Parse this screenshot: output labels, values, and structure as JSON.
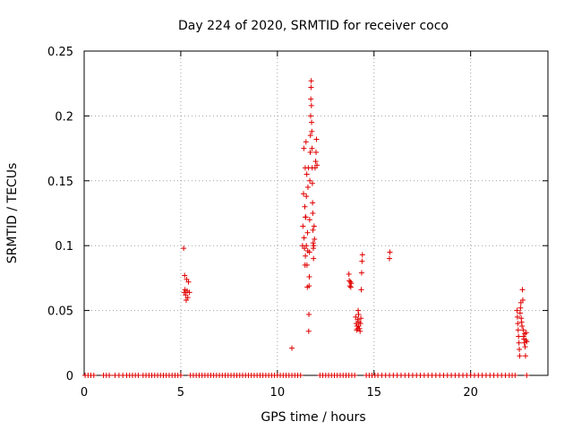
{
  "chart_data": {
    "type": "scatter",
    "title": "Day 224 of 2020, SRMTID for receiver coco",
    "xlabel": "GPS time / hours",
    "ylabel": "SRMTID / TECUs",
    "xlim": [
      0,
      24
    ],
    "ylim": [
      0,
      0.25
    ],
    "xticks": [
      0,
      5,
      10,
      15,
      20
    ],
    "yticks": [
      0,
      0.05,
      0.1,
      0.15,
      0.2,
      0.25
    ],
    "xtick_labels": [
      "0",
      "5",
      "10",
      "15",
      "20"
    ],
    "ytick_labels": [
      "0",
      "0.05",
      "0.1",
      "0.15",
      "0.2",
      "0.25"
    ],
    "grid": true,
    "marker": "+",
    "color": "#e00000",
    "series": [
      {
        "name": "SRMTID",
        "points": [
          [
            0.05,
            0
          ],
          [
            0.2,
            0
          ],
          [
            0.35,
            0
          ],
          [
            0.5,
            0
          ],
          [
            1.0,
            0
          ],
          [
            1.15,
            0
          ],
          [
            1.3,
            0
          ],
          [
            1.6,
            0
          ],
          [
            1.8,
            0
          ],
          [
            2.0,
            0
          ],
          [
            2.2,
            0
          ],
          [
            2.35,
            0
          ],
          [
            2.5,
            0
          ],
          [
            2.65,
            0
          ],
          [
            2.8,
            0
          ],
          [
            3.05,
            0
          ],
          [
            3.2,
            0
          ],
          [
            3.35,
            0
          ],
          [
            3.5,
            0
          ],
          [
            3.65,
            0
          ],
          [
            3.8,
            0
          ],
          [
            3.95,
            0
          ],
          [
            4.1,
            0
          ],
          [
            4.25,
            0
          ],
          [
            4.4,
            0
          ],
          [
            4.55,
            0
          ],
          [
            4.7,
            0
          ],
          [
            4.85,
            0
          ],
          [
            5.0,
            0
          ],
          [
            5.5,
            0
          ],
          [
            5.65,
            0
          ],
          [
            5.8,
            0
          ],
          [
            5.95,
            0
          ],
          [
            6.1,
            0
          ],
          [
            6.25,
            0
          ],
          [
            6.4,
            0
          ],
          [
            6.55,
            0
          ],
          [
            6.7,
            0
          ],
          [
            6.85,
            0
          ],
          [
            7.0,
            0
          ],
          [
            7.15,
            0
          ],
          [
            7.3,
            0
          ],
          [
            7.45,
            0
          ],
          [
            7.6,
            0
          ],
          [
            7.75,
            0
          ],
          [
            7.9,
            0
          ],
          [
            8.05,
            0
          ],
          [
            8.2,
            0
          ],
          [
            8.35,
            0
          ],
          [
            8.5,
            0
          ],
          [
            8.65,
            0
          ],
          [
            8.8,
            0
          ],
          [
            8.95,
            0
          ],
          [
            9.1,
            0
          ],
          [
            9.25,
            0
          ],
          [
            9.4,
            0
          ],
          [
            9.55,
            0
          ],
          [
            9.7,
            0
          ],
          [
            9.85,
            0
          ],
          [
            10.0,
            0
          ],
          [
            10.15,
            0
          ],
          [
            10.3,
            0
          ],
          [
            10.45,
            0
          ],
          [
            10.6,
            0
          ],
          [
            10.75,
            0
          ],
          [
            10.9,
            0
          ],
          [
            11.05,
            0
          ],
          [
            11.2,
            0
          ],
          [
            12.2,
            0
          ],
          [
            12.35,
            0
          ],
          [
            12.5,
            0
          ],
          [
            12.65,
            0
          ],
          [
            12.8,
            0
          ],
          [
            12.95,
            0
          ],
          [
            13.1,
            0
          ],
          [
            13.25,
            0
          ],
          [
            13.4,
            0
          ],
          [
            13.55,
            0
          ],
          [
            13.7,
            0
          ],
          [
            13.85,
            0
          ],
          [
            14.0,
            0
          ],
          [
            14.6,
            0
          ],
          [
            14.75,
            0
          ],
          [
            14.9,
            0
          ],
          [
            15.05,
            0
          ],
          [
            15.2,
            0
          ],
          [
            15.4,
            0
          ],
          [
            15.6,
            0
          ],
          [
            15.8,
            0
          ],
          [
            16.0,
            0
          ],
          [
            16.2,
            0
          ],
          [
            16.4,
            0
          ],
          [
            16.6,
            0
          ],
          [
            16.8,
            0
          ],
          [
            17.0,
            0
          ],
          [
            17.2,
            0
          ],
          [
            17.4,
            0
          ],
          [
            17.6,
            0
          ],
          [
            17.8,
            0
          ],
          [
            18.0,
            0
          ],
          [
            18.2,
            0
          ],
          [
            18.4,
            0
          ],
          [
            18.6,
            0
          ],
          [
            18.8,
            0
          ],
          [
            19.0,
            0
          ],
          [
            19.2,
            0
          ],
          [
            19.4,
            0
          ],
          [
            19.6,
            0
          ],
          [
            19.8,
            0
          ],
          [
            20.0,
            0
          ],
          [
            20.2,
            0
          ],
          [
            20.4,
            0
          ],
          [
            20.6,
            0
          ],
          [
            20.8,
            0
          ],
          [
            21.0,
            0
          ],
          [
            21.2,
            0
          ],
          [
            21.4,
            0
          ],
          [
            21.6,
            0
          ],
          [
            21.8,
            0
          ],
          [
            22.0,
            0
          ],
          [
            22.15,
            0
          ],
          [
            22.3,
            0
          ],
          [
            22.9,
            0
          ],
          [
            5.15,
            0.098
          ],
          [
            5.2,
            0.077
          ],
          [
            5.22,
            0.066
          ],
          [
            5.25,
            0.062
          ],
          [
            5.28,
            0.058
          ],
          [
            5.3,
            0.074
          ],
          [
            5.33,
            0.065
          ],
          [
            5.36,
            0.06
          ],
          [
            5.4,
            0.072
          ],
          [
            5.45,
            0.064
          ],
          [
            5.18,
            0.064
          ],
          [
            10.75,
            0.021
          ],
          [
            11.3,
            0.1
          ],
          [
            11.32,
            0.115
          ],
          [
            11.35,
            0.14
          ],
          [
            11.37,
            0.175
          ],
          [
            11.38,
            0.106
          ],
          [
            11.4,
            0.098
          ],
          [
            11.42,
            0.13
          ],
          [
            11.44,
            0.16
          ],
          [
            11.45,
            0.092
          ],
          [
            11.47,
            0.122
          ],
          [
            11.48,
            0.18
          ],
          [
            11.5,
            0.1
          ],
          [
            11.52,
            0.155
          ],
          [
            11.53,
            0.085
          ],
          [
            11.55,
            0.068
          ],
          [
            11.56,
            0.11
          ],
          [
            11.58,
            0.145
          ],
          [
            11.6,
            0.16
          ],
          [
            11.62,
            0.034
          ],
          [
            11.63,
            0.047
          ],
          [
            11.64,
            0.069
          ],
          [
            11.65,
            0.076
          ],
          [
            11.66,
            0.095
          ],
          [
            11.67,
            0.12
          ],
          [
            11.68,
            0.15
          ],
          [
            11.7,
            0.172
          ],
          [
            11.71,
            0.185
          ],
          [
            11.72,
            0.2
          ],
          [
            11.73,
            0.213
          ],
          [
            11.74,
            0.222
          ],
          [
            11.75,
            0.227
          ],
          [
            11.76,
            0.208
          ],
          [
            11.77,
            0.195
          ],
          [
            11.78,
            0.188
          ],
          [
            11.79,
            0.175
          ],
          [
            11.8,
            0.16
          ],
          [
            11.81,
            0.148
          ],
          [
            11.82,
            0.133
          ],
          [
            11.83,
            0.125
          ],
          [
            11.84,
            0.112
          ],
          [
            11.85,
            0.102
          ],
          [
            11.86,
            0.098
          ],
          [
            11.87,
            0.09
          ],
          [
            11.88,
            0.1
          ],
          [
            11.9,
            0.115
          ],
          [
            11.92,
            0.105
          ],
          [
            11.95,
            0.16
          ],
          [
            11.98,
            0.165
          ],
          [
            12.0,
            0.172
          ],
          [
            12.02,
            0.182
          ],
          [
            12.05,
            0.162
          ],
          [
            11.45,
            0.122
          ],
          [
            11.5,
            0.138
          ],
          [
            11.43,
            0.085
          ],
          [
            11.57,
            0.096
          ],
          [
            13.7,
            0.078
          ],
          [
            13.72,
            0.073
          ],
          [
            13.75,
            0.069
          ],
          [
            13.78,
            0.072
          ],
          [
            13.8,
            0.068
          ],
          [
            13.82,
            0.071
          ],
          [
            14.05,
            0.045
          ],
          [
            14.08,
            0.04
          ],
          [
            14.1,
            0.035
          ],
          [
            14.12,
            0.038
          ],
          [
            14.15,
            0.043
          ],
          [
            14.18,
            0.05
          ],
          [
            14.2,
            0.047
          ],
          [
            14.22,
            0.041
          ],
          [
            14.25,
            0.036
          ],
          [
            14.28,
            0.034
          ],
          [
            14.3,
            0.04
          ],
          [
            14.32,
            0.044
          ],
          [
            14.34,
            0.066
          ],
          [
            14.36,
            0.079
          ],
          [
            14.38,
            0.088
          ],
          [
            14.4,
            0.093
          ],
          [
            14.15,
            0.036
          ],
          [
            14.2,
            0.038
          ],
          [
            15.8,
            0.09
          ],
          [
            15.82,
            0.095
          ],
          [
            22.4,
            0.05
          ],
          [
            22.42,
            0.045
          ],
          [
            22.44,
            0.04
          ],
          [
            22.46,
            0.035
          ],
          [
            22.48,
            0.03
          ],
          [
            22.5,
            0.025
          ],
          [
            22.52,
            0.02
          ],
          [
            22.54,
            0.015
          ],
          [
            22.56,
            0.048
          ],
          [
            22.58,
            0.052
          ],
          [
            22.6,
            0.056
          ],
          [
            22.62,
            0.044
          ],
          [
            22.64,
            0.041
          ],
          [
            22.66,
            0.038
          ],
          [
            22.68,
            0.066
          ],
          [
            22.7,
            0.058
          ],
          [
            22.72,
            0.035
          ],
          [
            22.74,
            0.03
          ],
          [
            22.76,
            0.028
          ],
          [
            22.78,
            0.025
          ],
          [
            22.8,
            0.032
          ],
          [
            22.82,
            0.022
          ],
          [
            22.84,
            0.015
          ],
          [
            22.86,
            0.027
          ],
          [
            22.88,
            0.033
          ],
          [
            22.9,
            0.026
          ]
        ]
      }
    ]
  }
}
